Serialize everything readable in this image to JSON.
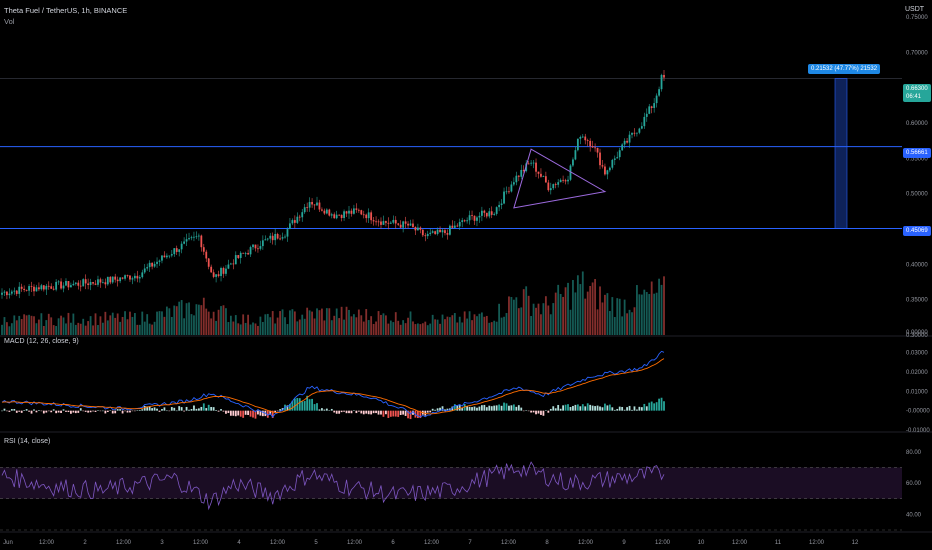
{
  "header": {
    "symbol": "Theta Fuel / TetherUS, 1h, BINANCE",
    "volume_label": "Vol",
    "currency": "USDT"
  },
  "price_tags": {
    "current_price": "0.66300",
    "countdown": "06:41",
    "resistance": "0.56661",
    "support": "0.45069",
    "measure": "0.21532 (47.77%) 21532"
  },
  "indicators": {
    "macd_label": "MACD (12, 26, close, 9)",
    "rsi_label": "RSI (14, close)"
  },
  "colors": {
    "background": "#000000",
    "up": "#26a69a",
    "down": "#ef5350",
    "hline": "#2962ff",
    "triangle": "#9c6ade",
    "macd_line": "#2962ff",
    "signal_line": "#ff6d00",
    "rsi_line": "#7e57c2",
    "rsi_band": "#1b0d24",
    "price_tag_green": "#26a69a",
    "level_tag_blue": "#2962ff"
  },
  "chart_data": [
    {
      "type": "candlestick",
      "title": "Theta Fuel / TetherUS, 1h, BINANCE",
      "y_ticks": [
        "0.75000",
        "0.70000",
        "0.65000",
        "0.60000",
        "0.55000",
        "0.50000",
        "0.45000",
        "0.40000",
        "0.35000",
        "0.30000"
      ],
      "x_ticks": [
        "Jun",
        "12:00",
        "2",
        "12:00",
        "3",
        "12:00",
        "4",
        "12:00",
        "5",
        "12:00",
        "6",
        "12:00",
        "7",
        "12:00",
        "8",
        "12:00",
        "9",
        "12:00",
        "10",
        "12:00",
        "11",
        "12:00",
        "12"
      ],
      "ylim": [
        0.3,
        0.76
      ],
      "anchor_points": [
        [
          0,
          0.36
        ],
        [
          15,
          0.368
        ],
        [
          30,
          0.372
        ],
        [
          45,
          0.378
        ],
        [
          55,
          0.385
        ],
        [
          70,
          0.42
        ],
        [
          80,
          0.44
        ],
        [
          86,
          0.38
        ],
        [
          94,
          0.405
        ],
        [
          105,
          0.43
        ],
        [
          115,
          0.445
        ],
        [
          125,
          0.49
        ],
        [
          135,
          0.47
        ],
        [
          145,
          0.475
        ],
        [
          155,
          0.46
        ],
        [
          165,
          0.455
        ],
        [
          172,
          0.44
        ],
        [
          180,
          0.445
        ],
        [
          190,
          0.465
        ],
        [
          200,
          0.475
        ],
        [
          208,
          0.52
        ],
        [
          215,
          0.545
        ],
        [
          222,
          0.51
        ],
        [
          230,
          0.525
        ],
        [
          235,
          0.585
        ],
        [
          240,
          0.57
        ],
        [
          245,
          0.53
        ],
        [
          252,
          0.565
        ],
        [
          260,
          0.6
        ],
        [
          265,
          0.63
        ],
        [
          268,
          0.663
        ]
      ],
      "horizontal_levels": [
        0.56661,
        0.45069
      ],
      "triangle": [
        [
          215,
          0.563
        ],
        [
          245,
          0.503
        ],
        [
          208,
          0.48
        ]
      ]
    },
    {
      "type": "bar",
      "title": "Vol",
      "y_ticks": [
        "0.00000"
      ],
      "volume_profile": [
        [
          0,
          0.3
        ],
        [
          60,
          0.35
        ],
        [
          80,
          0.6
        ],
        [
          100,
          0.3
        ],
        [
          130,
          0.45
        ],
        [
          180,
          0.3
        ],
        [
          200,
          0.4
        ],
        [
          210,
          0.8
        ],
        [
          220,
          0.55
        ],
        [
          235,
          1.0
        ],
        [
          250,
          0.6
        ],
        [
          260,
          0.75
        ],
        [
          268,
          0.85
        ]
      ]
    },
    {
      "type": "line",
      "title": "MACD (12, 26, close, 9)",
      "series_names": [
        "MACD",
        "Signal"
      ],
      "y_ticks": [
        "0.03000",
        "0.02000",
        "0.01000",
        "-0.00000",
        "-0.01000"
      ],
      "ylim": [
        -0.01,
        0.035
      ],
      "anchor_points": [
        [
          0,
          0.005
        ],
        [
          25,
          0.003
        ],
        [
          50,
          0.001
        ],
        [
          75,
          0.005
        ],
        [
          85,
          0.009
        ],
        [
          110,
          -0.003
        ],
        [
          125,
          0.012
        ],
        [
          150,
          0.007
        ],
        [
          170,
          -0.003
        ],
        [
          190,
          0.004
        ],
        [
          210,
          0.012
        ],
        [
          220,
          0.008
        ],
        [
          240,
          0.018
        ],
        [
          260,
          0.022
        ],
        [
          268,
          0.03
        ]
      ]
    },
    {
      "type": "line",
      "title": "RSI (14, close)",
      "y_ticks": [
        "80.00",
        "60.00",
        "40.00"
      ],
      "ylim": [
        30,
        85
      ],
      "band": [
        50,
        70
      ],
      "anchor_points": [
        [
          0,
          65
        ],
        [
          20,
          58
        ],
        [
          40,
          55
        ],
        [
          70,
          63
        ],
        [
          85,
          48
        ],
        [
          95,
          60
        ],
        [
          110,
          52
        ],
        [
          125,
          66
        ],
        [
          140,
          58
        ],
        [
          160,
          52
        ],
        [
          180,
          55
        ],
        [
          210,
          70
        ],
        [
          230,
          60
        ],
        [
          250,
          63
        ],
        [
          268,
          66
        ]
      ]
    }
  ]
}
